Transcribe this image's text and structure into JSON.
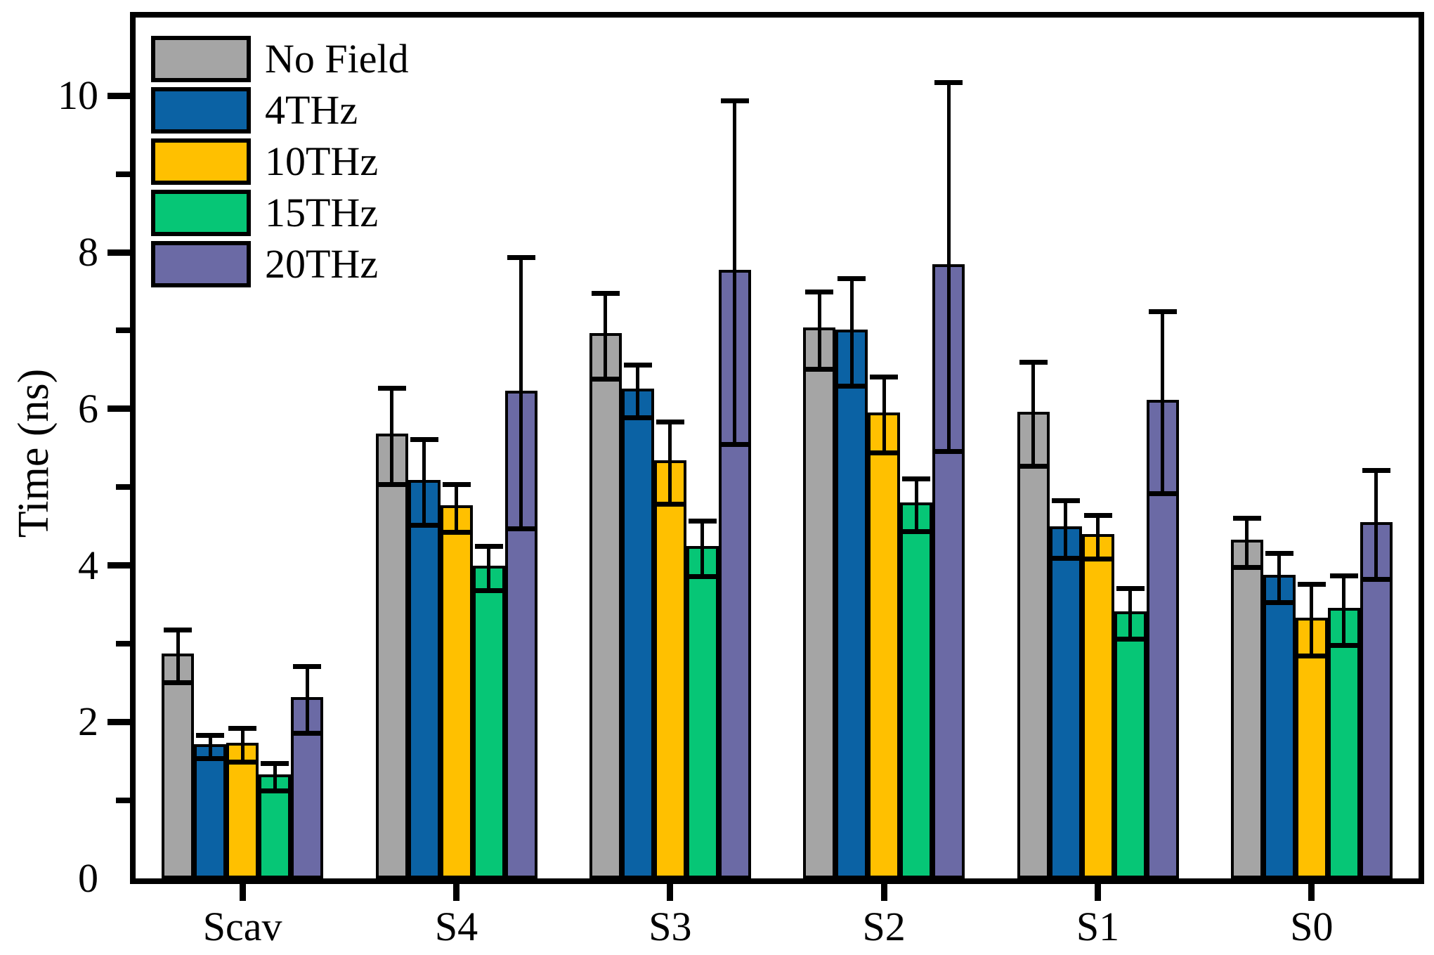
{
  "chart_data": {
    "type": "bar",
    "title": "",
    "xlabel": "",
    "ylabel": "Time (ns)",
    "ylim": [
      0,
      11
    ],
    "yticks_major": [
      0,
      2,
      4,
      6,
      8,
      10
    ],
    "yticks_minor": [
      1,
      3,
      5,
      7,
      9
    ],
    "grid": false,
    "legend_position": "top-left",
    "error_bars": true,
    "axis_color": "#000000",
    "categories": [
      "Scav",
      "S4",
      "S3",
      "S2",
      "S1",
      "S0"
    ],
    "series": [
      {
        "name": "No Field",
        "color": "#a5a5a5",
        "values": [
          2.84,
          5.65,
          6.93,
          7.0,
          5.93,
          4.29
        ],
        "errors": [
          0.34,
          0.62,
          0.55,
          0.5,
          0.67,
          0.32
        ]
      },
      {
        "name": "4THz",
        "color": "#0b62a4",
        "values": [
          1.68,
          5.06,
          6.22,
          6.98,
          4.46,
          3.84
        ],
        "errors": [
          0.15,
          0.55,
          0.34,
          0.69,
          0.37,
          0.32
        ]
      },
      {
        "name": "10THz",
        "color": "#ffc000",
        "values": [
          1.7,
          4.73,
          5.31,
          5.92,
          4.36,
          3.3
        ],
        "errors": [
          0.22,
          0.31,
          0.53,
          0.49,
          0.28,
          0.46
        ]
      },
      {
        "name": "15THz",
        "color": "#06c676",
        "values": [
          1.29,
          3.96,
          4.21,
          4.77,
          3.38,
          3.42
        ],
        "errors": [
          0.18,
          0.29,
          0.36,
          0.34,
          0.33,
          0.45
        ]
      },
      {
        "name": "20THz",
        "color": "#6b6aa5",
        "values": [
          2.28,
          6.2,
          7.74,
          7.81,
          6.08,
          4.52
        ],
        "errors": [
          0.43,
          1.74,
          2.2,
          2.36,
          1.17,
          0.7
        ]
      }
    ]
  }
}
